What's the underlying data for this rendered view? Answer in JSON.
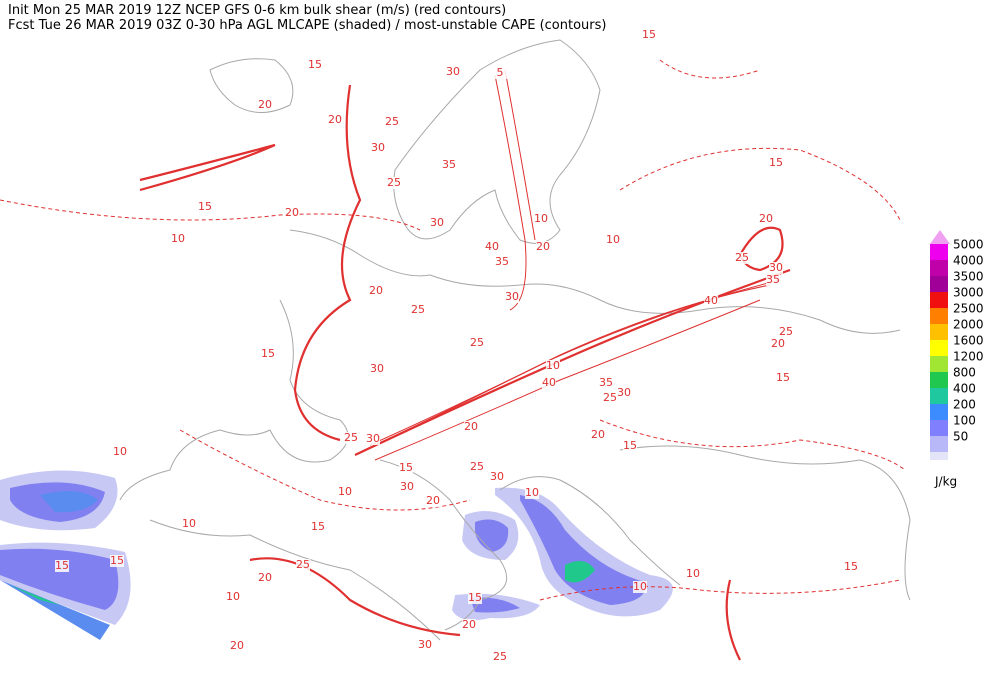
{
  "header": {
    "line1": "Init  Mon 25 MAR 2019 12Z  NCEP GFS 0-6 km bulk shear (m/s) (red contours)",
    "line2": "Fcst Tue 26 MAR 2019 03Z  0-30 hPa AGL MLCAPE (shaded) / most-unstable CAPE (contours)"
  },
  "colorbar": {
    "unit": "J/kg",
    "levels": [
      {
        "value": 5000,
        "color": "#ee00ee"
      },
      {
        "value": 4000,
        "color": "#c000a8"
      },
      {
        "value": 3500,
        "color": "#a00098"
      },
      {
        "value": 3000,
        "color": "#f01010"
      },
      {
        "value": 2500,
        "color": "#ff8000"
      },
      {
        "value": 2000,
        "color": "#ffc000"
      },
      {
        "value": 1600,
        "color": "#ffff00"
      },
      {
        "value": 1200,
        "color": "#a0e632"
      },
      {
        "value": 800,
        "color": "#20c850"
      },
      {
        "value": 400,
        "color": "#20c8a0"
      },
      {
        "value": 200,
        "color": "#3c8cff"
      },
      {
        "value": 100,
        "color": "#8080ff"
      },
      {
        "value": 50,
        "color": "#b8b8f8"
      }
    ],
    "bottom_color": "#e4e4f8"
  },
  "contour_labels": [
    "15",
    "30",
    "5",
    "20",
    "25",
    "20",
    "30",
    "25",
    "35",
    "15",
    "10",
    "20",
    "30",
    "40",
    "10",
    "20",
    "35",
    "30",
    "20",
    "25",
    "25",
    "30",
    "15",
    "15",
    "20",
    "10",
    "25",
    "30",
    "35",
    "40",
    "25",
    "20",
    "10",
    "40",
    "35",
    "30",
    "25",
    "15",
    "20",
    "15",
    "25",
    "30",
    "20",
    "15",
    "10",
    "30",
    "20",
    "25",
    "30",
    "10",
    "10",
    "15",
    "10",
    "15",
    "15",
    "25",
    "20",
    "10",
    "15",
    "20",
    "10",
    "10",
    "30",
    "25",
    "20",
    "15",
    "15"
  ]
}
